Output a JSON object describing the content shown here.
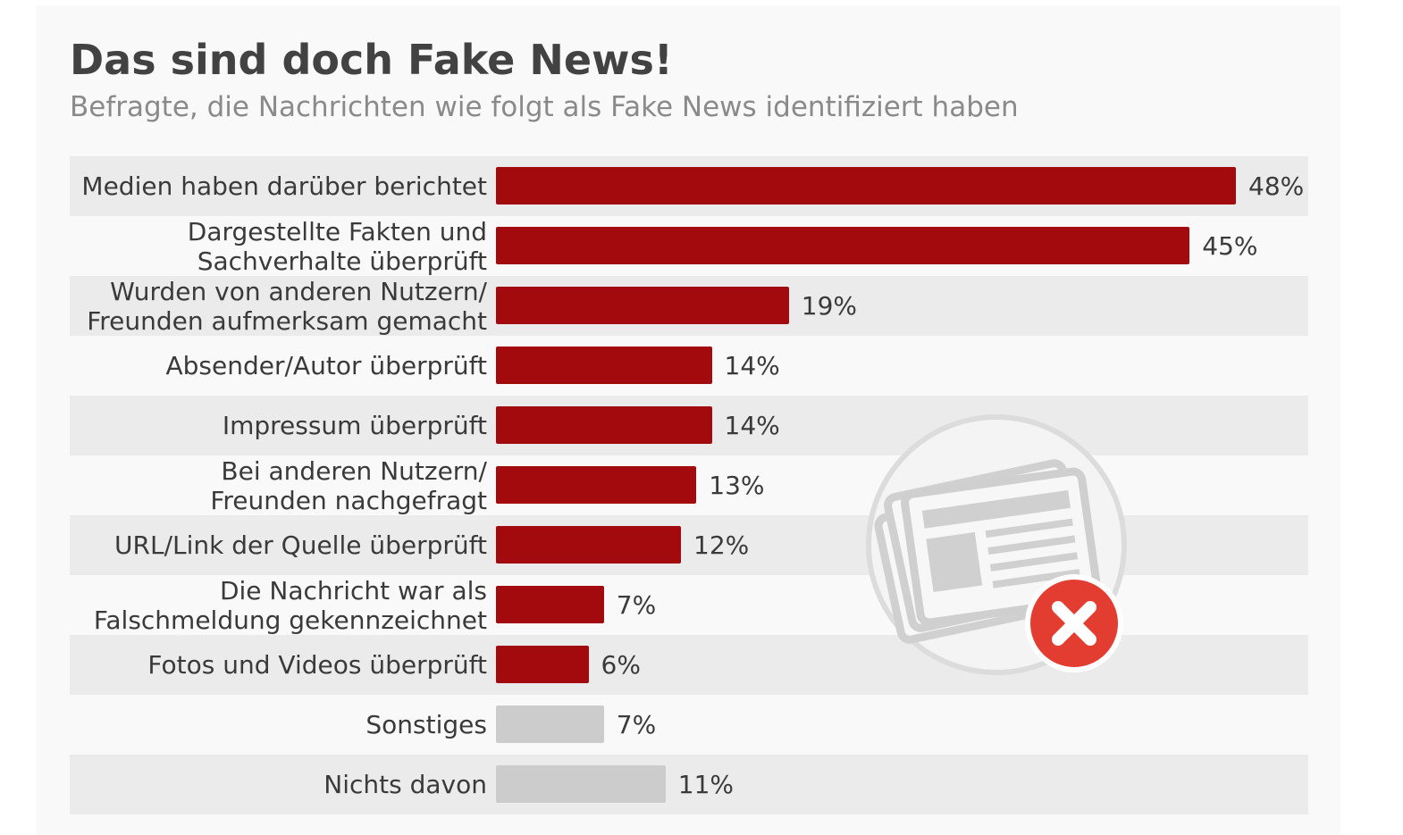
{
  "chart_data": {
    "type": "bar",
    "orientation": "horizontal",
    "title": "Das sind doch Fake News!",
    "subtitle": "Befragte, die Nachrichten wie folgt als Fake News identifiziert haben",
    "categories": [
      "Medien haben darüber berichtet",
      "Dargestellte Fakten und\nSachverhalte überprüft",
      "Wurden von anderen Nutzern/\nFreunden aufmerksam gemacht",
      "Absender/Autor überprüft",
      "Impressum überprüft",
      "Bei anderen Nutzern/\nFreunden nachgefragt",
      "URL/Link der Quelle überprüft",
      "Die Nachricht war als\nFalschmeldung gekennzeichnet",
      "Fotos und Videos überprüft",
      "Sonstiges",
      "Nichts davon"
    ],
    "values": [
      48,
      45,
      19,
      14,
      14,
      13,
      12,
      7,
      6,
      7,
      11
    ],
    "value_labels": [
      "48%",
      "45%",
      "19%",
      "14%",
      "14%",
      "13%",
      "12%",
      "7%",
      "6%",
      "7%",
      "11%"
    ],
    "colors": [
      "#a30a0e",
      "#a30a0e",
      "#a30a0e",
      "#a30a0e",
      "#a30a0e",
      "#a30a0e",
      "#a30a0e",
      "#a30a0e",
      "#a30a0e",
      "#cccccc",
      "#cccccc"
    ]
  }
}
